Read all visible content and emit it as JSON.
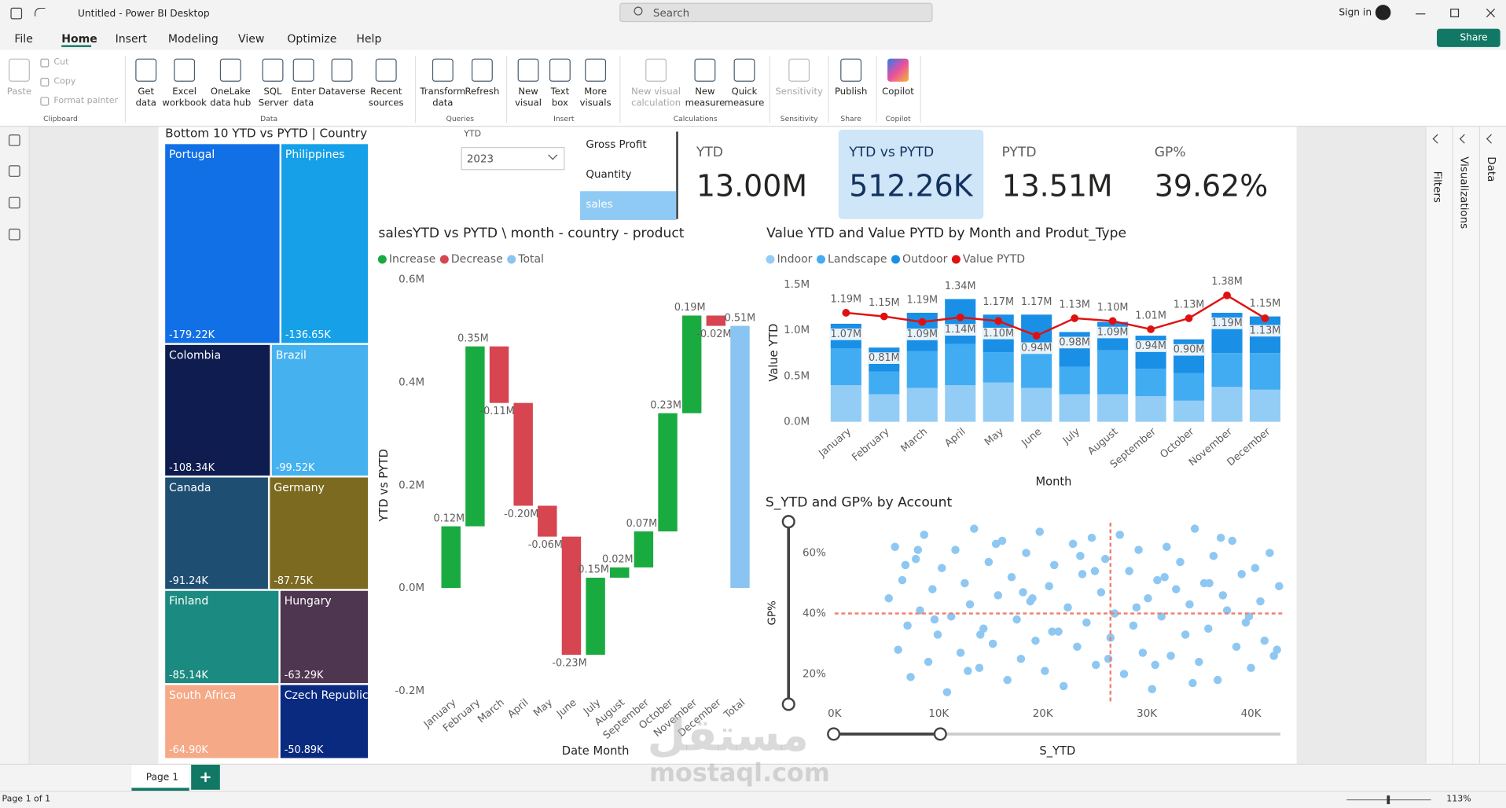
{
  "window": {
    "title": "Untitled - Power BI Desktop",
    "search": "Search",
    "sign_in": "Sign in",
    "share": "Share"
  },
  "menu": [
    "File",
    "Home",
    "Insert",
    "Modeling",
    "View",
    "Optimize",
    "Help"
  ],
  "active_menu": 1,
  "ribbon": [
    {
      "group": "Clipboard",
      "items": [
        "Paste",
        "Cut",
        "Copy",
        "Format painter"
      ]
    },
    {
      "group": "Data",
      "items": [
        "Get data",
        "Excel workbook",
        "OneLake data hub",
        "SQL Server",
        "Enter data",
        "Dataverse",
        "Recent sources"
      ]
    },
    {
      "group": "Queries",
      "items": [
        "Transform data",
        "Refresh"
      ]
    },
    {
      "group": "Insert",
      "items": [
        "New visual",
        "Text box",
        "More visuals"
      ]
    },
    {
      "group": "Calculations",
      "items": [
        "New visual calculation",
        "New measure",
        "Quick measure"
      ]
    },
    {
      "group": "Sensitivity",
      "items": [
        "Sensitivity"
      ]
    },
    {
      "group": "Share",
      "items": [
        "Publish"
      ]
    },
    {
      "group": "Copilot",
      "items": [
        "Copilot"
      ]
    }
  ],
  "panes": {
    "filters": "Filters",
    "visualizations": "Visualizations",
    "data": "Data"
  },
  "slicer": {
    "label": "YTD",
    "selected": "2023"
  },
  "measure_buttons": {
    "items": [
      "Gross Profit",
      "Quantity",
      "sales"
    ],
    "selected": 2
  },
  "cards": [
    {
      "label": "YTD",
      "value": "13.00M",
      "highlighted": false
    },
    {
      "label": "YTD vs PYTD",
      "value": "512.26K",
      "highlighted": true
    },
    {
      "label": "PYTD",
      "value": "13.51M",
      "highlighted": false
    },
    {
      "label": "GP%",
      "value": "39.62%",
      "highlighted": false
    }
  ],
  "chart_data": [
    {
      "type": "treemap",
      "title": "Bottom 10 YTD vs PYTD | Country",
      "categories": [
        "Portugal",
        "Philippines",
        "Colombia",
        "Brazil",
        "Canada",
        "Germany",
        "Finland",
        "Hungary",
        "South Africa",
        "Czech Republic"
      ],
      "values": [
        -179220,
        -136650,
        -108340,
        -99520,
        -91240,
        -87750,
        -85140,
        -63290,
        -64900,
        -50890
      ],
      "value_labels": [
        "-179.22K",
        "-136.65K",
        "-108.34K",
        "-99.52K",
        "-91.24K",
        "-87.75K",
        "-85.14K",
        "-63.29K",
        "-64.90K",
        "-50.89K"
      ],
      "colors": [
        "#1170e6",
        "#15a0e8",
        "#0e1c4f",
        "#45b1ef",
        "#1f4e73",
        "#7b6a20",
        "#1b8a80",
        "#4f3650",
        "#f5a987",
        "#0a2a80"
      ]
    },
    {
      "type": "waterfall",
      "title": "salesYTD vs PYTD \\ month - country - product",
      "legend": [
        {
          "name": "Increase",
          "color": "#1aab40"
        },
        {
          "name": "Decrease",
          "color": "#d64550"
        },
        {
          "name": "Total",
          "color": "#8ac4f2"
        }
      ],
      "categories": [
        "January",
        "February",
        "March",
        "April",
        "May",
        "June",
        "July",
        "August",
        "September",
        "October",
        "November",
        "December",
        "Total"
      ],
      "values": [
        0.12,
        0.35,
        -0.11,
        -0.2,
        -0.06,
        -0.23,
        0.15,
        0.02,
        0.07,
        0.23,
        0.19,
        -0.02,
        0.51
      ],
      "value_labels": [
        "0.12M",
        "0.35M",
        "-0.11M",
        "-0.20M",
        "-0.06M",
        "-0.23M",
        "0.15M",
        "0.02M",
        "0.07M",
        "0.23M",
        "0.19M",
        "-0.02M",
        "0.51M"
      ],
      "total_last": true,
      "ylim": [
        -0.2,
        0.6
      ],
      "yticks": [
        {
          "value": -0.2,
          "label": "-0.2M"
        },
        {
          "value": 0,
          "label": "0.0M"
        },
        {
          "value": 0.2,
          "label": "0.2M"
        },
        {
          "value": 0.4,
          "label": "0.4M"
        },
        {
          "value": 0.6,
          "label": "0.6M"
        }
      ],
      "y_label": "YTD vs PYTD",
      "x_label": "Date Month"
    },
    {
      "type": "combo",
      "title": "Value YTD and Value PYTD by Month and Produt_Type",
      "categories": [
        "January",
        "February",
        "March",
        "April",
        "May",
        "June",
        "July",
        "August",
        "September",
        "October",
        "November",
        "December"
      ],
      "series": [
        {
          "name": "Indoor",
          "color": "#93cdf6",
          "values": [
            0.4,
            0.3,
            0.37,
            0.4,
            0.43,
            0.37,
            0.3,
            0.3,
            0.28,
            0.23,
            0.38,
            0.35
          ]
        },
        {
          "name": "Landscape",
          "color": "#42acf2",
          "values": [
            0.4,
            0.25,
            0.4,
            0.45,
            0.33,
            0.38,
            0.3,
            0.48,
            0.3,
            0.3,
            0.37,
            0.4
          ]
        },
        {
          "name": "Outdoor",
          "color": "#1a8fe6",
          "values": [
            0.27,
            0.26,
            0.42,
            0.49,
            0.41,
            0.42,
            0.38,
            0.31,
            0.36,
            0.37,
            0.44,
            0.4
          ]
        },
        {
          "name": "Value PYTD",
          "color": "#e01010",
          "line": true,
          "values": [
            1.19,
            1.15,
            1.09,
            1.14,
            1.1,
            0.94,
            1.13,
            1.1,
            1.01,
            1.13,
            1.38,
            1.13
          ],
          "value_labels": [
            "1.19M",
            "1.15M",
            "1.09M",
            "1.14M",
            "1.10M",
            "0.94M",
            "1.13M",
            "1.10M",
            "1.01M",
            "1.13M",
            "1.38M",
            "1.13M"
          ]
        }
      ],
      "column_totals": {
        "values": [
          1.07,
          0.81,
          1.19,
          1.34,
          1.17,
          1.17,
          0.98,
          1.09,
          0.94,
          0.9,
          1.19,
          1.15
        ],
        "value_labels": [
          "1.07M",
          "0.81M",
          "1.19M",
          "1.34M",
          "1.17M",
          "1.17M",
          "0.98M",
          "1.09M",
          "0.94M",
          "0.90M",
          "1.19M",
          "1.15M"
        ]
      },
      "ylim": [
        0,
        1.5
      ],
      "yticks": [
        {
          "value": 0,
          "label": "0.0M"
        },
        {
          "value": 0.5,
          "label": "0.5M"
        },
        {
          "value": 1,
          "label": "1.0M"
        },
        {
          "value": 1.5,
          "label": "1.5M"
        }
      ],
      "y_label": "Value YTD",
      "x_label": "Month"
    },
    {
      "type": "scatter",
      "title": "S_YTD and GP% by Account",
      "color": "#8ec8f2",
      "x": [
        5200,
        5800,
        6100,
        6500,
        7000,
        7300,
        7800,
        8200,
        8600,
        9000,
        9400,
        9900,
        10300,
        10800,
        11200,
        11600,
        12100,
        12500,
        13000,
        13400,
        13900,
        14300,
        14800,
        15200,
        15700,
        16100,
        16600,
        17000,
        17500,
        17900,
        18400,
        18800,
        19300,
        19700,
        20200,
        20600,
        21100,
        21500,
        22000,
        22400,
        22900,
        23300,
        23800,
        24200,
        24700,
        25100,
        25600,
        26000,
        26500,
        26900,
        27400,
        27800,
        28300,
        28700,
        29200,
        29600,
        30100,
        30500,
        31000,
        31400,
        31900,
        32300,
        32800,
        33200,
        33700,
        34100,
        34600,
        35000,
        35500,
        35900,
        36400,
        36800,
        37300,
        37700,
        38200,
        38600,
        39100,
        39500,
        40000,
        40400,
        40900,
        41300,
        41800,
        42200,
        42700,
        6800,
        9600,
        12800,
        15500,
        18100,
        20900,
        23600,
        26300,
        29000,
        31700,
        34400,
        37100,
        39800,
        42500,
        8000,
        14000,
        19000,
        25000,
        30800,
        36000
      ],
      "values": [
        45,
        62,
        28,
        51,
        36,
        19,
        58,
        41,
        66,
        24,
        48,
        33,
        55,
        14,
        39,
        61,
        27,
        50,
        43,
        68,
        22,
        35,
        57,
        30,
        46,
        64,
        18,
        52,
        38,
        25,
        60,
        44,
        31,
        67,
        21,
        49,
        56,
        34,
        16,
        42,
        63,
        29,
        53,
        37,
        65,
        23,
        47,
        58,
        32,
        40,
        66,
        20,
        54,
        36,
        61,
        27,
        45,
        15,
        51,
        39,
        62,
        26,
        48,
        57,
        33,
        43,
        68,
        24,
        50,
        35,
        59,
        18,
        46,
        41,
        64,
        29,
        53,
        37,
        22,
        55,
        44,
        31,
        60,
        26,
        49,
        56,
        38,
        21,
        63,
        47,
        34,
        59,
        25,
        42,
        52,
        17,
        65,
        39,
        28,
        61,
        33,
        45,
        54,
        23,
        50
      ],
      "reference_lines": {
        "x": 26500,
        "y": 40,
        "color": "#f08070"
      },
      "xlim": [
        0,
        43000
      ],
      "ylim": [
        10,
        70
      ],
      "xticks": [
        {
          "value": 0,
          "label": "0K"
        },
        {
          "value": 10000,
          "label": "10K"
        },
        {
          "value": 20000,
          "label": "20K"
        },
        {
          "value": 30000,
          "label": "30K"
        },
        {
          "value": 40000,
          "label": "40K"
        }
      ],
      "yticks": [
        {
          "value": 20,
          "label": "20%"
        },
        {
          "value": 40,
          "label": "40%"
        },
        {
          "value": 60,
          "label": "60%"
        }
      ],
      "x_label": "S_YTD",
      "y_label": "GP%"
    }
  ],
  "status": {
    "page_tab": "Page 1",
    "page_count": "Page 1 of 1",
    "zoom": "113%"
  },
  "watermark": {
    "arabic": "مستقل",
    "latin": "mostaql.com"
  }
}
